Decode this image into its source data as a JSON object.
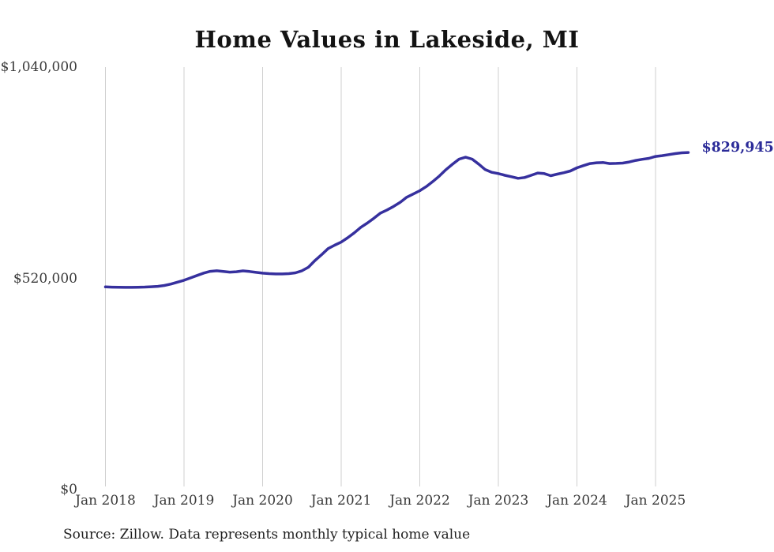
{
  "page": {
    "title": "Home Values in Lakeside, MI",
    "source_note": "Source: Zillow. Data represents monthly typical home value"
  },
  "chart_data": {
    "type": "line",
    "title": "Home Values in Lakeside, MI",
    "ylabel": "",
    "xlabel": "",
    "ylim": [
      0,
      1040000
    ],
    "grid": "vertical-only",
    "legend_position": "none",
    "gridline_color": "#cfcfcf",
    "line_color": "#36309e",
    "end_label_color": "#2c2c99",
    "x_start_label": "Jan 2018",
    "months_total": 90,
    "x_tick_labels": [
      "Jan 2018",
      "Jan 2019",
      "Jan 2020",
      "Jan 2021",
      "Jan 2022",
      "Jan 2023",
      "Jan 2024",
      "Jan 2025"
    ],
    "x_tick_month_indices": [
      0,
      12,
      24,
      36,
      48,
      60,
      72,
      84
    ],
    "y_ticks": [
      {
        "value": 0,
        "label": "$0"
      },
      {
        "value": 520000,
        "label": "$520,000"
      },
      {
        "value": 1040000,
        "label": "$1,040,000"
      }
    ],
    "end_label": "$829,945",
    "final_value": 829945,
    "series": [
      {
        "name": "Typical home value",
        "values": [
          499000,
          498400,
          498000,
          497800,
          497900,
          498200,
          498700,
          499300,
          500300,
          502500,
          506000,
          510600,
          515400,
          521200,
          527200,
          533000,
          537300,
          538700,
          537200,
          535300,
          536400,
          538500,
          536900,
          534800,
          532900,
          531600,
          530900,
          530900,
          531600,
          533600,
          538700,
          547500,
          564000,
          578200,
          593200,
          601600,
          609300,
          620200,
          632100,
          645800,
          656200,
          668100,
          680700,
          688300,
          697000,
          707100,
          719600,
          727600,
          735700,
          746100,
          758500,
          772100,
          787700,
          801100,
          813600,
          818200,
          813600,
          801300,
          787700,
          781100,
          777900,
          773600,
          770200,
          766300,
          768200,
          773600,
          779300,
          777900,
          772700,
          776600,
          780100,
          784400,
          792100,
          797600,
          802600,
          804500,
          805200,
          802600,
          803100,
          803800,
          806500,
          810400,
          813100,
          815500,
          820100,
          822100,
          824600,
          827100,
          829100,
          829945
        ]
      }
    ]
  }
}
